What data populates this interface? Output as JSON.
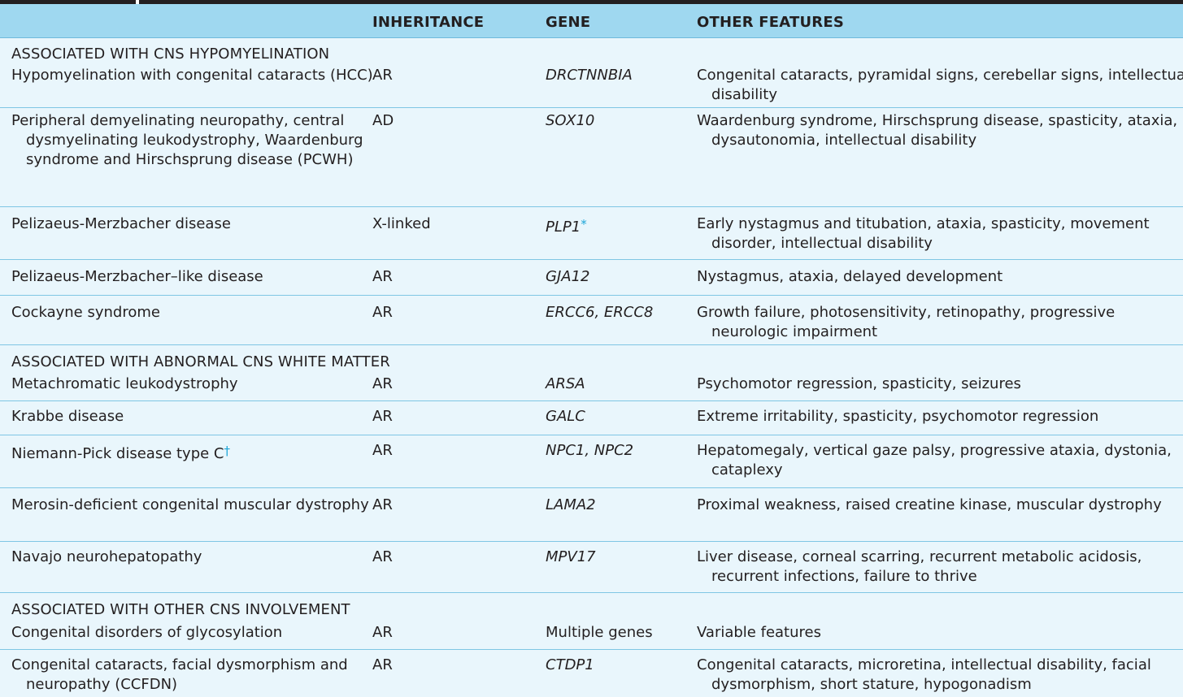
{
  "header": {
    "inheritance": "INHERITANCE",
    "gene": "GENE",
    "other_features": "OTHER FEATURES"
  },
  "sections": [
    {
      "title": "ASSOCIATED WITH CNS HYPOMYELINATION",
      "rows": [
        {
          "disorder": "Hypomyelination with congenital cataracts (HCC)",
          "inheritance": "AR",
          "gene": "DRCTNNBIA",
          "features": "Congenital cataracts, pyramidal signs, cerebellar signs, intellectual disability"
        },
        {
          "disorder": "Peripheral demyelinating neuropathy, central dysmyelinating leukodystrophy, Waardenburg syndrome and Hirschsprung disease (PCWH)",
          "inheritance": "AD",
          "gene": "SOX10",
          "features": "Waardenburg syndrome, Hirschsprung disease, spasticity, ataxia, dysautonomia, intellectual disability"
        },
        {
          "disorder": "Pelizaeus-Merzbacher disease",
          "inheritance": "X-linked",
          "gene": "PLP1",
          "gene_mark": "*",
          "features": "Early nystagmus and titubation, ataxia, spasticity, movement disorder, intellectual disability"
        },
        {
          "disorder": "Pelizaeus-Merzbacher–like disease",
          "inheritance": "AR",
          "gene": "GJA12",
          "features": "Nystagmus, ataxia, delayed development"
        },
        {
          "disorder": "Cockayne syndrome",
          "inheritance": "AR",
          "gene": "ERCC6, ERCC8",
          "features": "Growth failure, photosensitivity, retinopathy, progressive neurologic impairment"
        }
      ]
    },
    {
      "title": "ASSOCIATED WITH ABNORMAL CNS WHITE MATTER",
      "rows": [
        {
          "disorder": "Metachromatic leukodystrophy",
          "inheritance": "AR",
          "gene": "ARSA",
          "features": "Psychomotor regression, spasticity, seizures"
        },
        {
          "disorder": "Krabbe disease",
          "inheritance": "AR",
          "gene": "GALC",
          "features": "Extreme irritability, spasticity, psychomotor regression"
        },
        {
          "disorder": "Niemann-Pick disease type C",
          "disorder_mark": "†",
          "inheritance": "AR",
          "gene": "NPC1, NPC2",
          "features": "Hepatomegaly, vertical gaze palsy, progressive ataxia, dystonia, cataplexy"
        },
        {
          "disorder": "Merosin-deficient congenital muscular dystrophy",
          "inheritance": "AR",
          "gene": "LAMA2",
          "features": "Proximal weakness, raised creatine kinase, muscular dystrophy"
        },
        {
          "disorder": "Navajo neurohepatopathy",
          "inheritance": "AR",
          "gene": "MPV17",
          "features": "Liver disease, corneal scarring, recurrent metabolic acidosis, recurrent infections, failure to thrive"
        }
      ]
    },
    {
      "title": "ASSOCIATED WITH OTHER CNS INVOLVEMENT",
      "rows": [
        {
          "disorder": "Congenital disorders of glycosylation",
          "inheritance": "AR",
          "gene": "Multiple genes",
          "features": "Variable features"
        },
        {
          "disorder": "Congenital cataracts, facial dysmorphism and neuropathy (CCFDN)",
          "inheritance": "AR",
          "gene": "CTDP1",
          "features": "Congenital cataracts, microretina, intellectual disability, facial dysmorphism, short stature, hypogonadism"
        }
      ]
    }
  ],
  "colors": {
    "header_bg": "#9fd8f0",
    "body_bg": "#e9f6fc",
    "rule": "#7fc6e4",
    "mark": "#1ea6d8",
    "top_bar": "#231f20"
  }
}
